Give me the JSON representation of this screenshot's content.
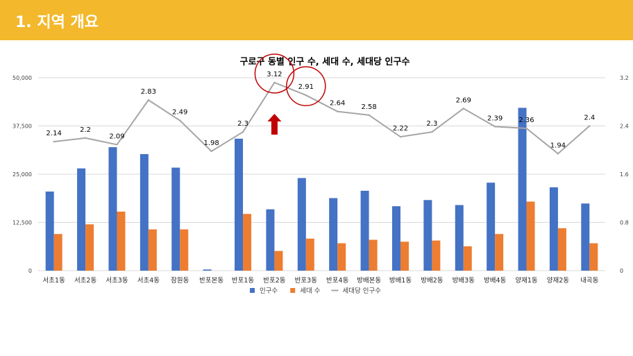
{
  "header": {
    "title": "1. 지역 개요"
  },
  "colors": {
    "header_bg": "#f3b82b",
    "population": "#4472c4",
    "households": "#ed7d31",
    "ratio": "#a5a5a5",
    "gridline": "#d9d9d9",
    "highlight_circle": "#c00000",
    "arrow": "#c00000"
  },
  "chart_data": {
    "type": "bar",
    "title": "구로구 동별 인구 수, 세대 수, 세대당 인구수",
    "categories": [
      "서초1동",
      "서초2동",
      "서초3동",
      "서초4동",
      "잠원동",
      "반포본동",
      "반포1동",
      "반포2동",
      "반포3동",
      "반포4동",
      "방배본동",
      "방배1동",
      "방배2동",
      "방배3동",
      "방배4동",
      "양재1동",
      "양재2동",
      "내곡동"
    ],
    "series": [
      {
        "name": "인구수",
        "type": "bar",
        "axis": "left",
        "values": [
          20500,
          26500,
          32000,
          30200,
          26700,
          300,
          34200,
          15900,
          24000,
          18800,
          20700,
          16700,
          18300,
          17000,
          22800,
          42200,
          21600,
          17400
        ]
      },
      {
        "name": "세대 수",
        "type": "bar",
        "axis": "left",
        "values": [
          9500,
          12000,
          15300,
          10700,
          10700,
          0,
          14700,
          5100,
          8300,
          7100,
          8000,
          7500,
          7800,
          6300,
          9500,
          17900,
          11000,
          7100
        ]
      },
      {
        "name": "세대당 인구수",
        "type": "line",
        "axis": "right",
        "values": [
          2.14,
          2.2,
          2.09,
          2.83,
          2.49,
          1.98,
          2.3,
          3.12,
          2.91,
          2.64,
          2.58,
          2.22,
          2.3,
          2.69,
          2.39,
          2.36,
          1.94,
          2.4
        ]
      }
    ],
    "y_left": {
      "range": [
        0,
        50000
      ],
      "ticks": [
        "0",
        "12,500",
        "25,000",
        "37,500",
        "50,000"
      ]
    },
    "y_right": {
      "range": [
        0,
        3.2
      ],
      "ticks": [
        "0",
        "0.8",
        "1.6",
        "2.4",
        "3.2"
      ]
    },
    "ratio_labels": [
      "2.14",
      "2.2",
      "2.09",
      "2.83",
      "2.49",
      "1.98",
      "2.3",
      "3.12",
      "2.91",
      "2.64",
      "2.58",
      "2.22",
      "2.3",
      "2.69",
      "2.39",
      "2.36",
      "1.94",
      "2.4"
    ],
    "grid": true,
    "legend": "bottom",
    "highlights": [
      "반포2동",
      "반포3동"
    ],
    "arrow_at": "반포2동"
  }
}
